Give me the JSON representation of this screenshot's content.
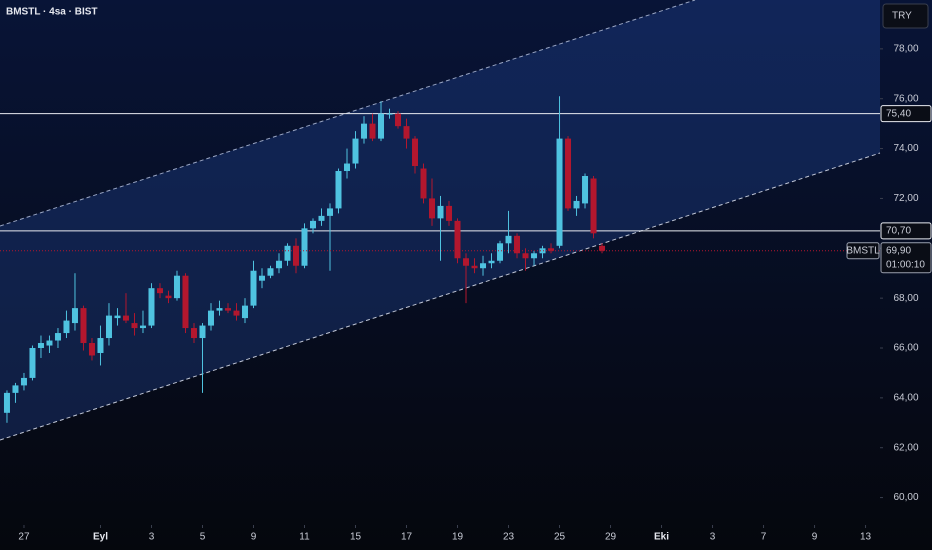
{
  "header": {
    "title": "BMSTL · 4sa · BIST",
    "currency_button": "TRY"
  },
  "chart_data": {
    "type": "candlestick",
    "up_color": "#4fc3e0",
    "down_color": "#b3172e",
    "open": [
      63.4,
      64.2,
      64.5,
      64.8,
      66.0,
      66.1,
      66.3,
      66.6,
      67.0,
      67.6,
      66.2,
      65.8,
      66.4,
      67.2,
      67.3,
      67.0,
      66.8,
      66.9,
      68.4,
      68.1,
      68.0,
      68.9,
      66.8,
      66.4,
      66.9,
      67.5,
      67.6,
      67.5,
      67.2,
      67.7,
      68.7,
      68.9,
      69.2,
      69.5,
      70.1,
      69.3,
      70.8,
      71.1,
      71.3,
      71.6,
      73.1,
      73.4,
      74.4,
      75.0,
      74.4,
      75.4,
      75.4,
      74.9,
      74.4,
      73.2,
      72.0,
      71.2,
      71.7,
      71.1,
      69.6,
      69.3,
      69.2,
      69.4,
      69.5,
      70.2,
      70.5,
      69.8,
      69.6,
      69.8,
      70.0,
      70.1,
      74.4,
      71.6,
      71.8,
      72.8,
      70.1
    ],
    "high": [
      64.3,
      64.6,
      65.0,
      66.1,
      66.5,
      66.5,
      66.8,
      67.5,
      69.0,
      67.7,
      66.4,
      66.9,
      67.8,
      67.6,
      68.2,
      67.4,
      67.5,
      68.6,
      68.6,
      68.3,
      69.1,
      69.0,
      67.0,
      67.0,
      67.8,
      67.9,
      67.8,
      67.8,
      68.0,
      69.5,
      69.2,
      69.3,
      69.8,
      70.2,
      70.4,
      71.0,
      71.2,
      71.6,
      71.8,
      73.2,
      74.0,
      74.7,
      75.3,
      75.4,
      75.9,
      75.6,
      75.5,
      75.2,
      74.5,
      73.4,
      72.8,
      72.1,
      71.9,
      71.2,
      69.8,
      69.6,
      69.7,
      69.8,
      70.3,
      71.5,
      70.6,
      70.0,
      69.9,
      70.1,
      70.2,
      76.1,
      74.5,
      72.1,
      73.0,
      72.9,
      70.2
    ],
    "low": [
      63.0,
      63.8,
      64.3,
      64.7,
      65.6,
      65.8,
      66.0,
      66.4,
      66.7,
      65.9,
      65.5,
      65.3,
      66.1,
      66.9,
      67.0,
      66.5,
      66.6,
      66.8,
      68.0,
      67.8,
      67.9,
      66.6,
      66.2,
      64.2,
      66.7,
      67.3,
      67.4,
      67.1,
      67.0,
      67.6,
      68.4,
      68.8,
      69.0,
      69.3,
      69.0,
      69.2,
      70.6,
      70.9,
      69.1,
      71.4,
      72.8,
      73.2,
      74.2,
      74.3,
      74.3,
      75.2,
      74.8,
      74.0,
      73.0,
      71.8,
      70.9,
      69.5,
      70.9,
      69.4,
      67.8,
      69.0,
      68.9,
      69.2,
      69.4,
      69.8,
      69.6,
      69.1,
      69.3,
      69.6,
      69.8,
      70.0,
      71.5,
      71.3,
      71.6,
      70.4,
      69.8
    ],
    "close": [
      64.2,
      64.5,
      64.8,
      66.0,
      66.2,
      66.3,
      66.6,
      67.1,
      67.6,
      66.2,
      65.7,
      66.4,
      67.3,
      67.3,
      67.1,
      66.8,
      66.9,
      68.4,
      68.2,
      68.0,
      68.9,
      66.8,
      66.4,
      66.9,
      67.5,
      67.6,
      67.5,
      67.3,
      67.7,
      69.1,
      68.9,
      69.2,
      69.5,
      70.1,
      69.3,
      70.8,
      71.1,
      71.3,
      71.6,
      73.1,
      73.4,
      74.4,
      75.0,
      74.4,
      75.4,
      75.4,
      74.9,
      74.4,
      73.3,
      72.0,
      71.2,
      71.7,
      71.1,
      69.6,
      69.3,
      69.2,
      69.4,
      69.5,
      70.2,
      70.5,
      69.8,
      69.6,
      69.8,
      70.0,
      69.9,
      74.4,
      71.6,
      71.9,
      72.9,
      70.6,
      69.9
    ],
    "xlim": [
      -0.82,
      102.7
    ],
    "xticks": [
      {
        "value": 2,
        "label": "27"
      },
      {
        "value": 11,
        "label": "Eyl"
      },
      {
        "value": 17,
        "label": "3"
      },
      {
        "value": 23,
        "label": "5"
      },
      {
        "value": 29,
        "label": "9"
      },
      {
        "value": 35,
        "label": "11"
      },
      {
        "value": 41,
        "label": "15"
      },
      {
        "value": 47,
        "label": "17"
      },
      {
        "value": 53,
        "label": "19"
      },
      {
        "value": 59,
        "label": "23"
      },
      {
        "value": 65,
        "label": "25"
      },
      {
        "value": 71,
        "label": "29"
      },
      {
        "value": 77,
        "label": "Eki"
      },
      {
        "value": 83,
        "label": "3"
      },
      {
        "value": 89,
        "label": "7"
      },
      {
        "value": 95,
        "label": "9"
      },
      {
        "value": 101,
        "label": "13"
      }
    ],
    "ylim": [
      58.9,
      79.96
    ],
    "yticks": [
      {
        "value": 60,
        "label": "60,00"
      },
      {
        "value": 62,
        "label": "62,00"
      },
      {
        "value": 64,
        "label": "64,00"
      },
      {
        "value": 66,
        "label": "66,00"
      },
      {
        "value": 68,
        "label": "68,00"
      },
      {
        "value": 70,
        "label": "70,00"
      },
      {
        "value": 72,
        "label": "72,00"
      },
      {
        "value": 74,
        "label": "74,00"
      },
      {
        "value": 76,
        "label": "76,00"
      },
      {
        "value": 78,
        "label": "78,00"
      }
    ],
    "hlines": [
      {
        "value": 75.4,
        "label": "75,40"
      },
      {
        "value": 70.7,
        "label": "70,70"
      }
    ],
    "last_price": {
      "value": 69.9,
      "label": "69,90"
    },
    "symbol_label": "BMSTL",
    "countdown": "01:00:10"
  }
}
